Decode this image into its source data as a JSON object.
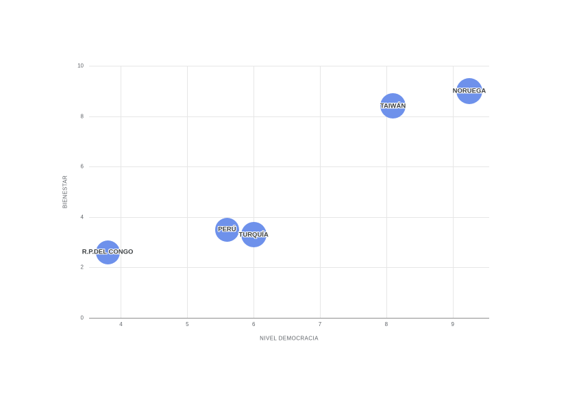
{
  "chart_data": {
    "type": "scatter",
    "subtype": "bubble",
    "title": "",
    "xlabel": "NIVEL DEMOCRACIA",
    "ylabel": "BIENESTAR",
    "xlim": [
      3.52,
      9.55
    ],
    "ylim": [
      0,
      10
    ],
    "x_ticks": [
      4,
      5,
      6,
      7,
      8,
      9
    ],
    "y_ticks": [
      0,
      2,
      4,
      6,
      8,
      10
    ],
    "grid": true,
    "legend": "none",
    "points": [
      {
        "label": "R.P.DEL CONGO",
        "x": 3.8,
        "y": 2.6,
        "r": 17.5
      },
      {
        "label": "PERÚ",
        "x": 5.6,
        "y": 3.5,
        "r": 17.5
      },
      {
        "label": "TURQUÍA",
        "x": 6.0,
        "y": 3.3,
        "r": 18.5
      },
      {
        "label": "TAIWÁN",
        "x": 8.1,
        "y": 8.4,
        "r": 18.5
      },
      {
        "label": "NORUEGA",
        "x": 9.25,
        "y": 9.0,
        "r": 19
      }
    ],
    "colors": {
      "bubble": "#6E91EB",
      "grid": "#e6e6e6",
      "axis_line": "#8f8f8f",
      "tick_text": "#5f6368",
      "label_text": "#3c4043"
    }
  }
}
